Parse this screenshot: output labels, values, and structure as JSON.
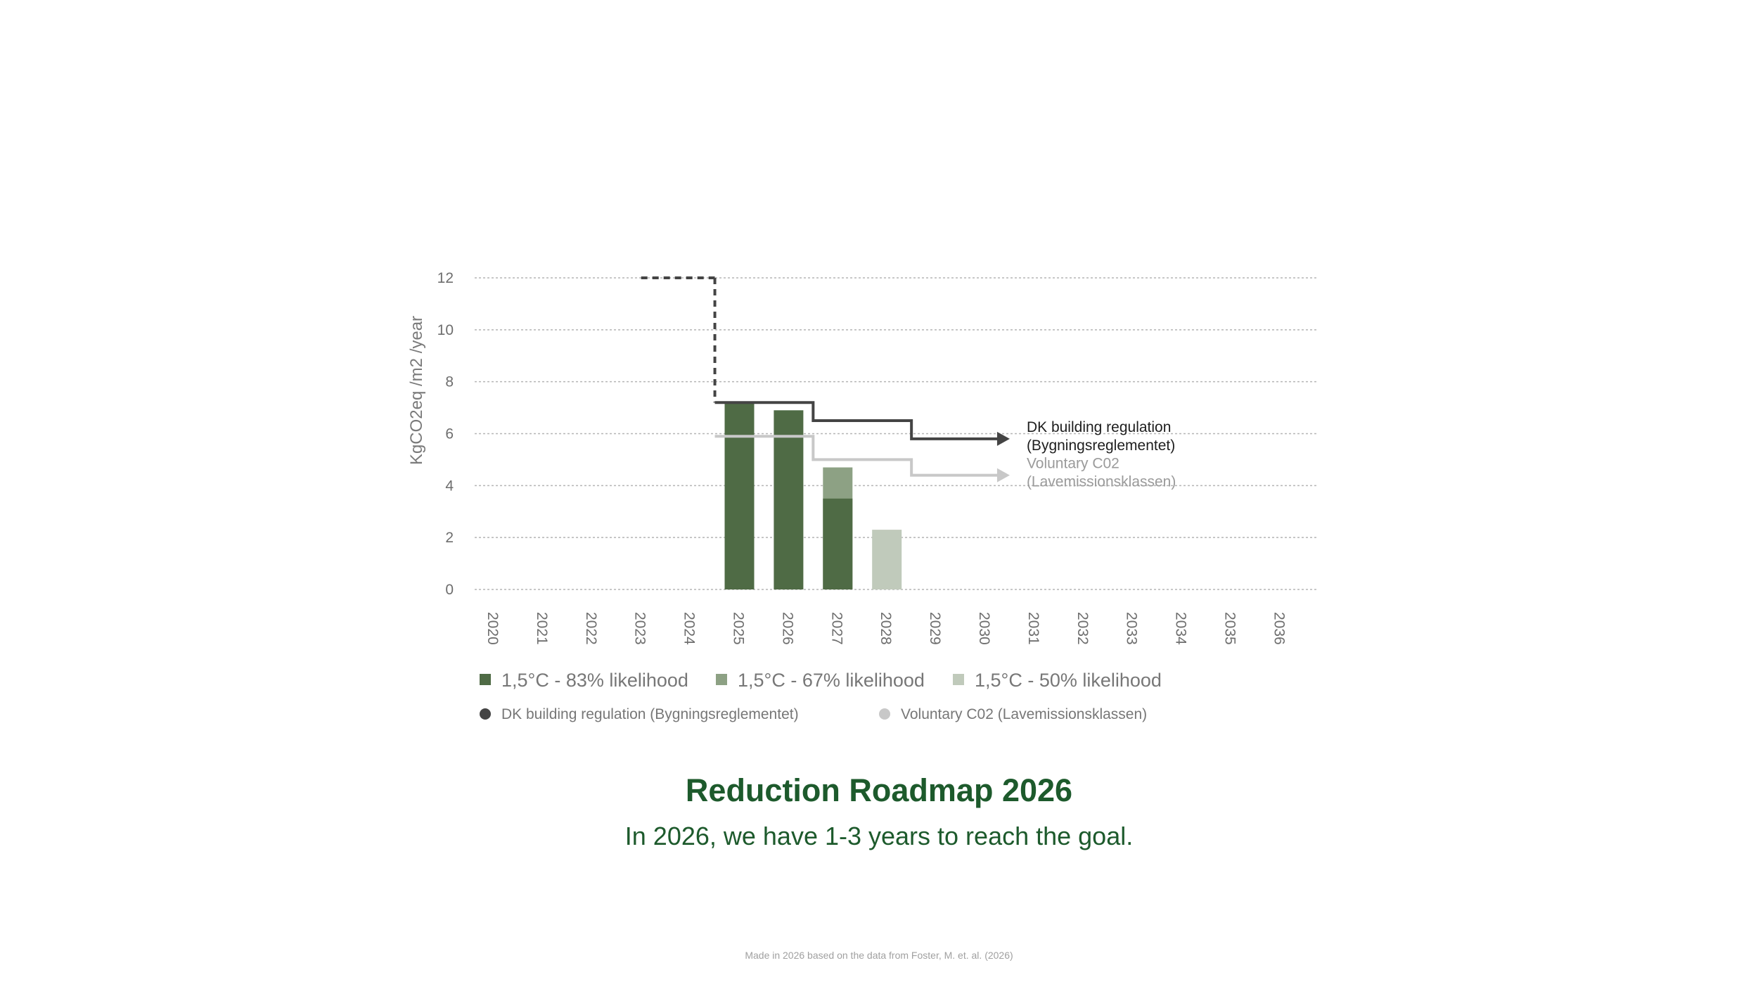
{
  "chart_data": {
    "type": "bar",
    "ylabel": "KgCO2eq /m2 /year",
    "xlabel": "",
    "ylim": [
      0,
      12
    ],
    "y_ticks": [
      "0",
      "2",
      "4",
      "6",
      "8",
      "10",
      "12"
    ],
    "categories": [
      "2020",
      "2021",
      "2022",
      "2023",
      "2024",
      "2025",
      "2026",
      "2027",
      "2028",
      "2029",
      "2030",
      "2031",
      "2032",
      "2033",
      "2034",
      "2035",
      "2036"
    ],
    "grid": true,
    "series": [
      {
        "name": "1,5°C - 83% likelihood",
        "color": "#4f6b45",
        "values": [
          null,
          null,
          null,
          null,
          null,
          7.2,
          6.9,
          3.5,
          null,
          null,
          null,
          null,
          null,
          null,
          null,
          null,
          null
        ]
      },
      {
        "name": "1,5°C - 67% likelihood",
        "color": "#8da184",
        "values": [
          null,
          null,
          null,
          null,
          null,
          null,
          null,
          4.7,
          null,
          null,
          null,
          null,
          null,
          null,
          null,
          null,
          null
        ]
      },
      {
        "name": "1,5°C - 50% likelihood",
        "color": "#c0cabb",
        "values": [
          null,
          null,
          null,
          null,
          null,
          null,
          null,
          null,
          2.3,
          null,
          null,
          null,
          null,
          null,
          null,
          null,
          null
        ]
      }
    ],
    "lines": [
      {
        "name": "DK building regulation (Bygningsreglementet)",
        "annotation": [
          "DK building regulation",
          "(Bygningsreglementet)"
        ],
        "color": "#444444",
        "steps": [
          {
            "from": 2023,
            "to": 2024.5,
            "y": 12,
            "dashed": true
          },
          {
            "from": 2024.5,
            "to": 2026.5,
            "y": 7.2
          },
          {
            "from": 2026.5,
            "to": 2028.5,
            "y": 6.5
          },
          {
            "from": 2028.5,
            "to": 2030.5,
            "y": 5.8
          }
        ]
      },
      {
        "name": "Voluntary C02 (Lavemissionsklassen)",
        "annotation": [
          "Voluntary C02",
          "(Lavemissionsklassen)"
        ],
        "color": "#c8c8c8",
        "steps": [
          {
            "from": 2024.5,
            "to": 2026.5,
            "y": 5.9
          },
          {
            "from": 2026.5,
            "to": 2028.5,
            "y": 5.0
          },
          {
            "from": 2028.5,
            "to": 2030.5,
            "y": 4.4
          }
        ]
      }
    ]
  },
  "title": "Reduction Roadmap 2026",
  "subtitle": "In 2026, we have 1-3 years to reach the goal.",
  "footnote": "Made in 2026 based on the data from Foster, M. et. al. (2026)"
}
